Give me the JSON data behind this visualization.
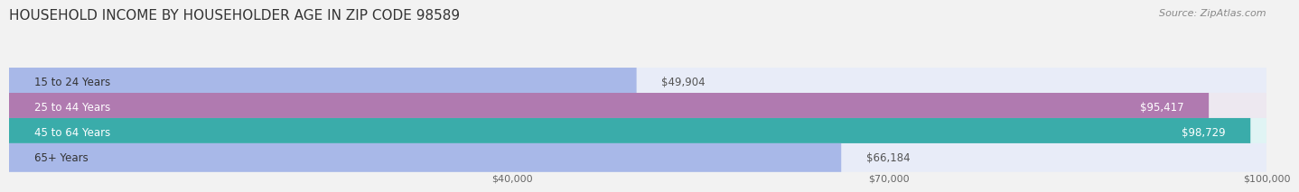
{
  "title": "HOUSEHOLD INCOME BY HOUSEHOLDER AGE IN ZIP CODE 98589",
  "source": "Source: ZipAtlas.com",
  "categories": [
    "15 to 24 Years",
    "25 to 44 Years",
    "45 to 64 Years",
    "65+ Years"
  ],
  "values": [
    49904,
    95417,
    98729,
    66184
  ],
  "bar_colors": [
    "#a8b8e8",
    "#b07ab0",
    "#3aacaa",
    "#a8b8e8"
  ],
  "bar_bg_colors": [
    "#e8ecf8",
    "#ede8f0",
    "#e0f4f4",
    "#e8ecf8"
  ],
  "value_labels": [
    "$49,904",
    "$95,417",
    "$98,729",
    "$66,184"
  ],
  "label_colors": [
    "#333333",
    "#ffffff",
    "#ffffff",
    "#333333"
  ],
  "value_inside": [
    false,
    true,
    true,
    false
  ],
  "xmin": 0,
  "xmax": 100000,
  "xticks": [
    40000,
    70000,
    100000
  ],
  "xtick_labels": [
    "$40,000",
    "$70,000",
    "$100,000"
  ],
  "title_fontsize": 11,
  "source_fontsize": 8,
  "label_fontsize": 8.5,
  "value_fontsize": 8.5,
  "background_color": "#f2f2f2"
}
